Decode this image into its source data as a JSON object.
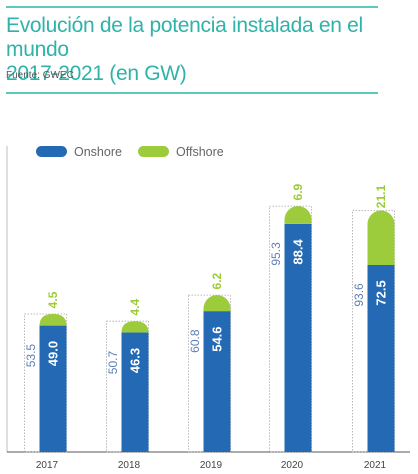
{
  "header": {
    "title_line1": "Evolución de la potencia instalada en el mundo",
    "title_line2": "2017-2021 (en GW)",
    "source": "Fuente: GWEC"
  },
  "colors": {
    "accent": "#2fb3a8",
    "onshore": "#2469b3",
    "offshore": "#9ccb3b",
    "total_label": "#5b7fb5"
  },
  "chart_data": {
    "type": "bar",
    "stacked": true,
    "categories": [
      "2017",
      "2018",
      "2019",
      "2020",
      "2021"
    ],
    "series": [
      {
        "name": "Onshore",
        "values": [
          49.0,
          46.3,
          54.6,
          88.4,
          72.5
        ],
        "labels": [
          "49.0",
          "46.3",
          "54.6",
          "88.4",
          "72.5"
        ]
      },
      {
        "name": "Offshore",
        "values": [
          4.5,
          4.4,
          6.2,
          6.9,
          21.1
        ],
        "labels": [
          "4.5",
          "4.4",
          "6.2",
          "6.9",
          "21.1"
        ]
      }
    ],
    "totals": [
      53.5,
      50.7,
      60.8,
      95.3,
      93.6
    ],
    "total_labels": [
      "53.5",
      "50.7",
      "60.8",
      "95.3",
      "93.6"
    ],
    "legend_position": "top-left",
    "ylim": [
      0,
      110
    ]
  }
}
